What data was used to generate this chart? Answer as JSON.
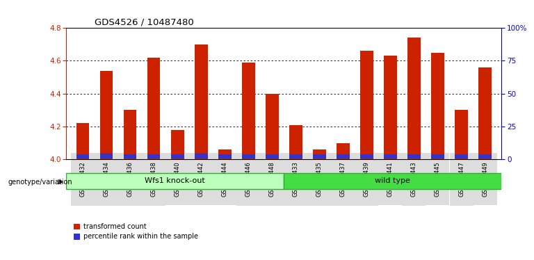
{
  "title": "GDS4526 / 10487480",
  "samples": [
    "GSM825432",
    "GSM825434",
    "GSM825436",
    "GSM825438",
    "GSM825440",
    "GSM825442",
    "GSM825444",
    "GSM825446",
    "GSM825448",
    "GSM825433",
    "GSM825435",
    "GSM825437",
    "GSM825439",
    "GSM825441",
    "GSM825443",
    "GSM825445",
    "GSM825447",
    "GSM825449"
  ],
  "red_values": [
    4.22,
    4.54,
    4.3,
    4.62,
    4.18,
    4.7,
    4.06,
    4.59,
    4.4,
    4.21,
    4.06,
    4.1,
    4.66,
    4.63,
    4.74,
    4.65,
    4.3,
    4.56
  ],
  "blue_heights": [
    0.025,
    0.03,
    0.028,
    0.028,
    0.025,
    0.03,
    0.025,
    0.028,
    0.028,
    0.025,
    0.028,
    0.025,
    0.028,
    0.028,
    0.028,
    0.028,
    0.025,
    0.028
  ],
  "ymin": 4.0,
  "ymax": 4.8,
  "bar_color": "#CC2200",
  "blue_color": "#3333CC",
  "group1_label": "Wfs1 knock-out",
  "group2_label": "wild type",
  "group1_color": "#BBFFBB",
  "group2_color": "#44DD44",
  "group1_count": 9,
  "group2_count": 9,
  "yticks_left": [
    4.0,
    4.2,
    4.4,
    4.6,
    4.8
  ],
  "yticks_right": [
    0,
    25,
    50,
    75,
    100
  ],
  "yticks_right_labels": [
    "0",
    "25",
    "50",
    "75",
    "100%"
  ],
  "ylabel_left_color": "#CC2200",
  "ylabel_right_color": "#0000CC",
  "genotype_label": "genotype/variation",
  "legend_red": "transformed count",
  "legend_blue": "percentile rank within the sample"
}
